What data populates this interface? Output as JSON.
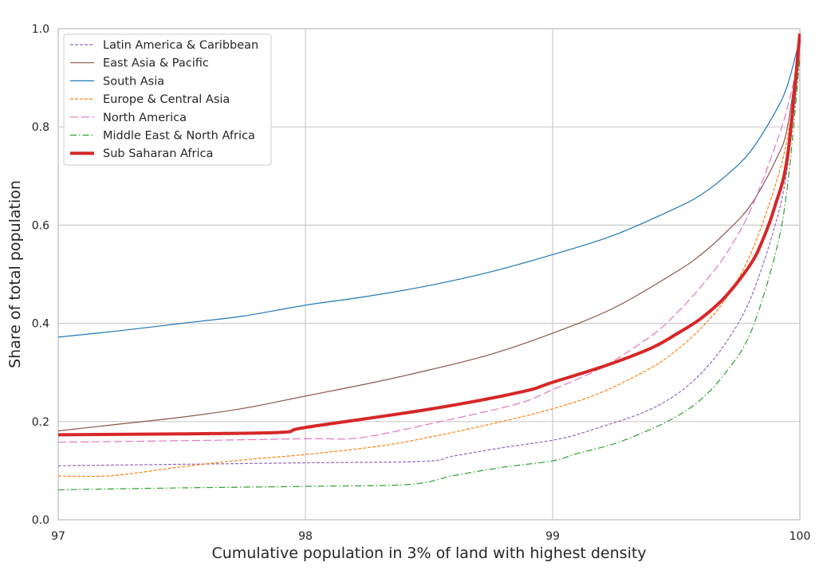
{
  "chart_data": {
    "type": "line",
    "title": "",
    "xlabel": "Cumulative population in 3% of land with highest density",
    "ylabel": "Share of total population",
    "xlim": [
      97,
      100
    ],
    "ylim": [
      0,
      1
    ],
    "x_ticks": [
      "97",
      "98",
      "99",
      "100"
    ],
    "y_ticks": [
      "0.0",
      "0.2",
      "0.4",
      "0.6",
      "0.8",
      "1.0"
    ],
    "grid": true,
    "legend_position": "top-left",
    "series": [
      {
        "name": "Latin America & Caribbean",
        "color": "#9467bd",
        "dash": "short-dash",
        "width": 1.2,
        "points": [
          [
            97.0,
            0.11
          ],
          [
            97.5,
            0.113
          ],
          [
            98.0,
            0.116
          ],
          [
            98.48,
            0.119
          ],
          [
            98.6,
            0.13
          ],
          [
            98.8,
            0.147
          ],
          [
            99.0,
            0.162
          ],
          [
            99.1,
            0.174
          ],
          [
            99.2,
            0.19
          ],
          [
            99.3,
            0.206
          ],
          [
            99.4,
            0.226
          ],
          [
            99.5,
            0.255
          ],
          [
            99.6,
            0.298
          ],
          [
            99.7,
            0.36
          ],
          [
            99.8,
            0.45
          ],
          [
            99.9,
            0.6
          ],
          [
            99.95,
            0.72
          ],
          [
            100.0,
            0.95
          ]
        ]
      },
      {
        "name": "East Asia & Pacific",
        "color": "#8c564b",
        "dash": "solid",
        "width": 1.2,
        "points": [
          [
            97.0,
            0.181
          ],
          [
            97.25,
            0.195
          ],
          [
            97.5,
            0.209
          ],
          [
            97.75,
            0.227
          ],
          [
            98.0,
            0.252
          ],
          [
            98.25,
            0.277
          ],
          [
            98.5,
            0.305
          ],
          [
            98.75,
            0.337
          ],
          [
            99.0,
            0.38
          ],
          [
            99.25,
            0.432
          ],
          [
            99.5,
            0.505
          ],
          [
            99.6,
            0.54
          ],
          [
            99.7,
            0.585
          ],
          [
            99.8,
            0.64
          ],
          [
            99.9,
            0.73
          ],
          [
            99.95,
            0.8
          ],
          [
            100.0,
            0.98
          ]
        ]
      },
      {
        "name": "South Asia",
        "color": "#1f77b4",
        "dash": "solid",
        "width": 1.2,
        "points": [
          [
            97.0,
            0.372
          ],
          [
            97.25,
            0.385
          ],
          [
            97.5,
            0.4
          ],
          [
            97.75,
            0.415
          ],
          [
            98.0,
            0.437
          ],
          [
            98.25,
            0.455
          ],
          [
            98.5,
            0.477
          ],
          [
            98.75,
            0.505
          ],
          [
            99.0,
            0.54
          ],
          [
            99.25,
            0.58
          ],
          [
            99.5,
            0.635
          ],
          [
            99.6,
            0.662
          ],
          [
            99.7,
            0.7
          ],
          [
            99.8,
            0.75
          ],
          [
            99.9,
            0.83
          ],
          [
            99.95,
            0.885
          ],
          [
            100.0,
            0.98
          ]
        ]
      },
      {
        "name": "Europe & Central Asia",
        "color": "#ff7f0e",
        "dash": "short-dash",
        "width": 1.2,
        "points": [
          [
            97.0,
            0.089
          ],
          [
            97.22,
            0.09
          ],
          [
            97.5,
            0.108
          ],
          [
            97.75,
            0.122
          ],
          [
            98.0,
            0.133
          ],
          [
            98.3,
            0.15
          ],
          [
            98.5,
            0.168
          ],
          [
            98.75,
            0.195
          ],
          [
            99.0,
            0.226
          ],
          [
            99.2,
            0.26
          ],
          [
            99.4,
            0.31
          ],
          [
            99.5,
            0.345
          ],
          [
            99.6,
            0.39
          ],
          [
            99.7,
            0.45
          ],
          [
            99.8,
            0.54
          ],
          [
            99.9,
            0.68
          ],
          [
            99.95,
            0.78
          ],
          [
            100.0,
            0.95
          ]
        ]
      },
      {
        "name": "North America",
        "color": "#e377c2",
        "dash": "long-dash",
        "width": 1.2,
        "points": [
          [
            97.0,
            0.158
          ],
          [
            97.5,
            0.161
          ],
          [
            98.0,
            0.165
          ],
          [
            98.22,
            0.167
          ],
          [
            98.5,
            0.195
          ],
          [
            98.85,
            0.235
          ],
          [
            99.0,
            0.265
          ],
          [
            99.2,
            0.31
          ],
          [
            99.4,
            0.375
          ],
          [
            99.5,
            0.42
          ],
          [
            99.6,
            0.475
          ],
          [
            99.7,
            0.54
          ],
          [
            99.8,
            0.63
          ],
          [
            99.9,
            0.76
          ],
          [
            99.95,
            0.84
          ],
          [
            100.0,
            0.95
          ]
        ]
      },
      {
        "name": "Middle East & North Africa",
        "color": "#2ca02c",
        "dash": "dash-dot",
        "width": 1.2,
        "points": [
          [
            97.0,
            0.061
          ],
          [
            97.5,
            0.065
          ],
          [
            98.0,
            0.068
          ],
          [
            98.42,
            0.072
          ],
          [
            98.6,
            0.09
          ],
          [
            98.8,
            0.107
          ],
          [
            99.0,
            0.12
          ],
          [
            99.1,
            0.135
          ],
          [
            99.25,
            0.155
          ],
          [
            99.4,
            0.185
          ],
          [
            99.5,
            0.21
          ],
          [
            99.6,
            0.245
          ],
          [
            99.7,
            0.3
          ],
          [
            99.8,
            0.38
          ],
          [
            99.9,
            0.54
          ],
          [
            99.95,
            0.68
          ],
          [
            100.0,
            0.94
          ]
        ]
      },
      {
        "name": "Sub Saharan Africa",
        "color": "#d62728",
        "dash": "solid",
        "width": 4,
        "points": [
          [
            97.0,
            0.173
          ],
          [
            97.5,
            0.175
          ],
          [
            97.9,
            0.178
          ],
          [
            98.0,
            0.188
          ],
          [
            98.5,
            0.225
          ],
          [
            98.87,
            0.26
          ],
          [
            99.0,
            0.28
          ],
          [
            99.22,
            0.315
          ],
          [
            99.4,
            0.35
          ],
          [
            99.5,
            0.378
          ],
          [
            99.6,
            0.41
          ],
          [
            99.7,
            0.455
          ],
          [
            99.8,
            0.52
          ],
          [
            99.85,
            0.57
          ],
          [
            99.9,
            0.64
          ],
          [
            99.95,
            0.74
          ],
          [
            100.0,
            0.99
          ]
        ]
      }
    ]
  }
}
